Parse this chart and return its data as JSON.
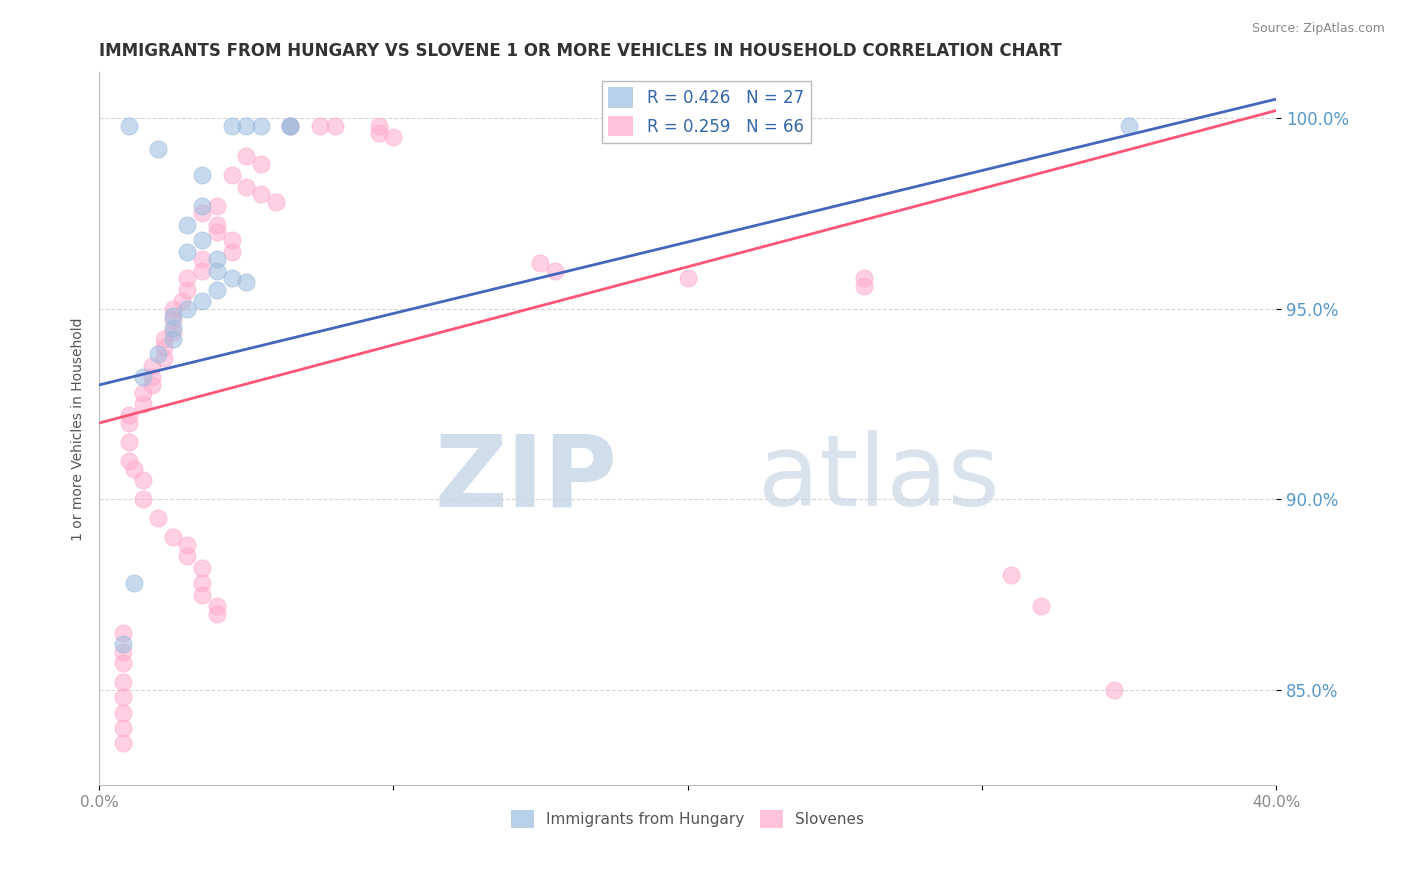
{
  "title": "IMMIGRANTS FROM HUNGARY VS SLOVENE 1 OR MORE VEHICLES IN HOUSEHOLD CORRELATION CHART",
  "source": "Source: ZipAtlas.com",
  "ylabel": "1 or more Vehicles in Household",
  "xlim": [
    0.0,
    0.4
  ],
  "ylim": [
    0.825,
    1.012
  ],
  "xticks": [
    0.0,
    0.1,
    0.2,
    0.3,
    0.4
  ],
  "xticklabels": [
    "0.0%",
    "",
    "",
    "",
    "40.0%"
  ],
  "yticks": [
    0.85,
    0.9,
    0.95,
    1.0
  ],
  "yticklabels": [
    "85.0%",
    "90.0%",
    "95.0%",
    "100.0%"
  ],
  "legend1_label": "R = 0.426   N = 27",
  "legend2_label": "R = 0.259   N = 66",
  "legend_label1": "Immigrants from Hungary",
  "legend_label2": "Slovenes",
  "blue_color": "#99BBDD",
  "pink_color": "#FFAACC",
  "blue_line_color": "#4466BB",
  "pink_line_color": "#FF5577",
  "blue_line": [
    [
      0.0,
      0.93
    ],
    [
      0.4,
      1.005
    ]
  ],
  "pink_line": [
    [
      0.0,
      0.92
    ],
    [
      0.4,
      1.002
    ]
  ],
  "blue_scatter": [
    [
      0.01,
      0.998
    ],
    [
      0.065,
      0.998
    ],
    [
      0.065,
      0.998
    ],
    [
      0.05,
      0.998
    ],
    [
      0.055,
      0.998
    ],
    [
      0.045,
      0.998
    ],
    [
      0.02,
      0.992
    ],
    [
      0.035,
      0.985
    ],
    [
      0.035,
      0.977
    ],
    [
      0.03,
      0.972
    ],
    [
      0.035,
      0.968
    ],
    [
      0.03,
      0.965
    ],
    [
      0.04,
      0.963
    ],
    [
      0.04,
      0.96
    ],
    [
      0.045,
      0.958
    ],
    [
      0.05,
      0.957
    ],
    [
      0.04,
      0.955
    ],
    [
      0.035,
      0.952
    ],
    [
      0.03,
      0.95
    ],
    [
      0.025,
      0.948
    ],
    [
      0.025,
      0.945
    ],
    [
      0.025,
      0.942
    ],
    [
      0.02,
      0.938
    ],
    [
      0.015,
      0.932
    ],
    [
      0.012,
      0.878
    ],
    [
      0.008,
      0.862
    ],
    [
      0.35,
      0.998
    ]
  ],
  "pink_scatter": [
    [
      0.065,
      0.998
    ],
    [
      0.095,
      0.998
    ],
    [
      0.075,
      0.998
    ],
    [
      0.08,
      0.998
    ],
    [
      0.095,
      0.996
    ],
    [
      0.1,
      0.995
    ],
    [
      0.05,
      0.99
    ],
    [
      0.055,
      0.988
    ],
    [
      0.045,
      0.985
    ],
    [
      0.05,
      0.982
    ],
    [
      0.055,
      0.98
    ],
    [
      0.06,
      0.978
    ],
    [
      0.04,
      0.977
    ],
    [
      0.035,
      0.975
    ],
    [
      0.04,
      0.972
    ],
    [
      0.04,
      0.97
    ],
    [
      0.045,
      0.968
    ],
    [
      0.045,
      0.965
    ],
    [
      0.035,
      0.963
    ],
    [
      0.035,
      0.96
    ],
    [
      0.03,
      0.958
    ],
    [
      0.03,
      0.955
    ],
    [
      0.028,
      0.952
    ],
    [
      0.025,
      0.95
    ],
    [
      0.025,
      0.947
    ],
    [
      0.025,
      0.944
    ],
    [
      0.022,
      0.942
    ],
    [
      0.022,
      0.94
    ],
    [
      0.022,
      0.937
    ],
    [
      0.018,
      0.935
    ],
    [
      0.018,
      0.932
    ],
    [
      0.018,
      0.93
    ],
    [
      0.015,
      0.928
    ],
    [
      0.015,
      0.925
    ],
    [
      0.01,
      0.922
    ],
    [
      0.01,
      0.92
    ],
    [
      0.01,
      0.915
    ],
    [
      0.01,
      0.91
    ],
    [
      0.012,
      0.908
    ],
    [
      0.015,
      0.905
    ],
    [
      0.015,
      0.9
    ],
    [
      0.02,
      0.895
    ],
    [
      0.025,
      0.89
    ],
    [
      0.03,
      0.888
    ],
    [
      0.03,
      0.885
    ],
    [
      0.035,
      0.882
    ],
    [
      0.035,
      0.878
    ],
    [
      0.035,
      0.875
    ],
    [
      0.04,
      0.872
    ],
    [
      0.04,
      0.87
    ],
    [
      0.008,
      0.865
    ],
    [
      0.008,
      0.86
    ],
    [
      0.008,
      0.857
    ],
    [
      0.008,
      0.852
    ],
    [
      0.008,
      0.848
    ],
    [
      0.008,
      0.844
    ],
    [
      0.008,
      0.84
    ],
    [
      0.008,
      0.836
    ],
    [
      0.15,
      0.962
    ],
    [
      0.155,
      0.96
    ],
    [
      0.2,
      0.958
    ],
    [
      0.26,
      0.958
    ],
    [
      0.26,
      0.956
    ],
    [
      0.31,
      0.88
    ],
    [
      0.32,
      0.872
    ],
    [
      0.345,
      0.85
    ]
  ],
  "blue_R": 0.426,
  "pink_R": 0.259,
  "blue_N": 27,
  "pink_N": 66,
  "watermark_ZIP": "ZIP",
  "watermark_atlas": "atlas",
  "background_color": "#FFFFFF",
  "grid_color": "#CCCCCC",
  "title_color": "#333333",
  "ytick_color": "#5599CC",
  "xtick_color": "#888888",
  "ylabel_color": "#555555",
  "source_color": "#888888"
}
